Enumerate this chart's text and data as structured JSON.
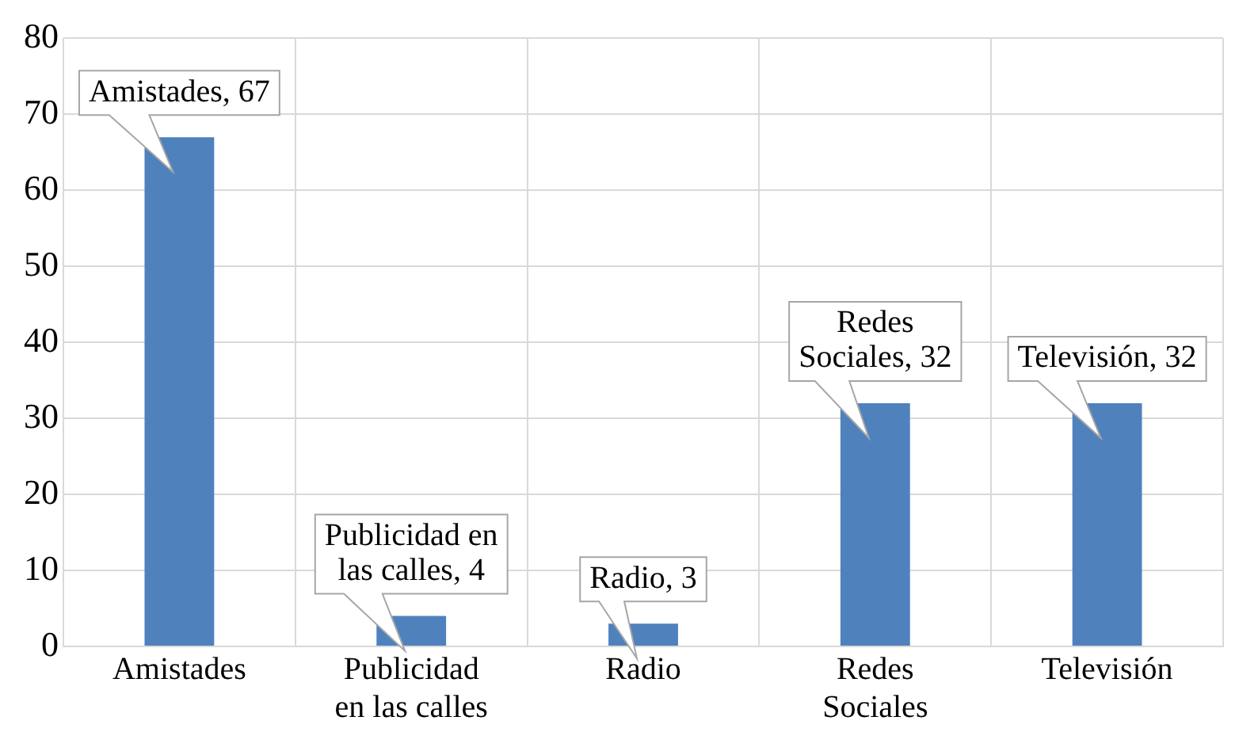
{
  "chart_data": {
    "type": "bar",
    "categories": [
      "Amistades",
      "Publicidad en las calles",
      "Radio",
      "Redes Sociales",
      "Televisión"
    ],
    "values": [
      67,
      4,
      3,
      32,
      32
    ],
    "value_labels": [
      "Amistades, 67",
      "Publicidad en las calles, 4",
      "Radio, 3",
      "Redes Sociales, 32",
      "Televisión, 32"
    ],
    "color": "#4f81bd",
    "ylim": [
      0,
      80
    ],
    "yticks": [
      0,
      10,
      20,
      30,
      40,
      50,
      60,
      70,
      80
    ],
    "grid": true,
    "legend": false
  }
}
